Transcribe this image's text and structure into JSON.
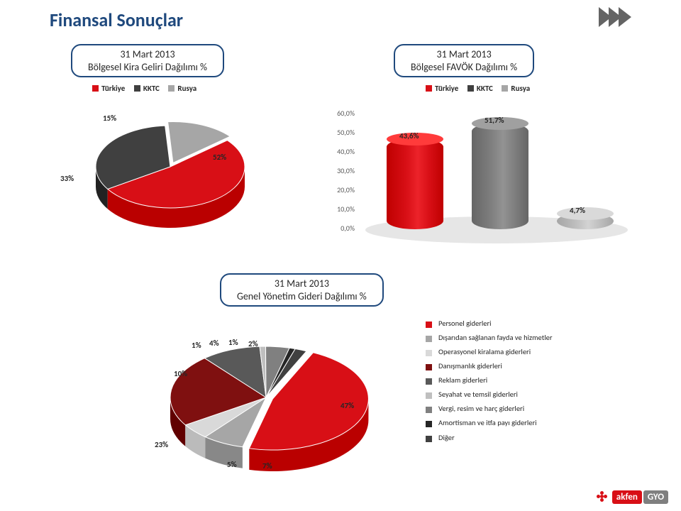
{
  "page_title": "Finansal Sonuçlar",
  "title_color": "#1f497d",
  "chevron_color": "#646464",
  "panel_border": "#1f497d",
  "pie1": {
    "title_line1": "31 Mart 2013",
    "title_line2": "Bölgesel Kira Geliri Dağılımı %",
    "legend": [
      {
        "label": "Türkiye",
        "color": "#d80f16"
      },
      {
        "label": "KKTC",
        "color": "#404040"
      },
      {
        "label": "Rusya",
        "color": "#a6a6a6"
      }
    ],
    "slices": [
      {
        "label": "52%",
        "value": 52,
        "color": "#d80f16"
      },
      {
        "label": "33%",
        "value": 33,
        "color": "#404040"
      },
      {
        "label": "15%",
        "value": 15,
        "color": "#a6a6a6"
      }
    ]
  },
  "bar": {
    "title_line1": "31 Mart 2013",
    "title_line2": "Bölgesel FAVÖK Dağılımı %",
    "legend": [
      {
        "label": "Türkiye",
        "color": "#d80f16"
      },
      {
        "label": "KKTC",
        "color": "#404040"
      },
      {
        "label": "Rusya",
        "color": "#a6a6a6"
      }
    ],
    "y_ticks": [
      "0,0%",
      "10,0%",
      "20,0%",
      "30,0%",
      "40,0%",
      "50,0%",
      "60,0%"
    ],
    "y_max": 60,
    "bars": [
      {
        "label": "43,6%",
        "value": 43.6,
        "color": "#d80f16",
        "top_color": "#ff3b3b"
      },
      {
        "label": "51,7%",
        "value": 51.7,
        "color": "#7f7f7f",
        "top_color": "#a0a0a0"
      },
      {
        "label": "4,7%",
        "value": 4.7,
        "color": "#bfbfbf",
        "top_color": "#d9d9d9"
      }
    ],
    "floor_color": "#ececec",
    "axis_color": "#595959"
  },
  "pie2": {
    "title_line1": "31 Mart 2013",
    "title_line2": "Genel Yönetim Gideri Dağılımı %",
    "legend": [
      {
        "label": "Personel giderleri",
        "color": "#d80f16"
      },
      {
        "label": "Dışarıdan sağlanan fayda ve hizmetler",
        "color": "#a6a6a6"
      },
      {
        "label": "Operasyonel kiralama giderleri",
        "color": "#d9d9d9"
      },
      {
        "label": "Danışmanlık giderleri",
        "color": "#7f1010"
      },
      {
        "label": "Reklam giderleri",
        "color": "#595959"
      },
      {
        "label": "Seyahat ve temsil giderleri",
        "color": "#bfbfbf"
      },
      {
        "label": "Vergi, resim ve harç giderleri",
        "color": "#808080"
      },
      {
        "label": "Amortisman ve itfa payı giderleri",
        "color": "#262626"
      },
      {
        "label": "Diğer",
        "color": "#404040"
      }
    ],
    "slices": [
      {
        "label": "47%",
        "value": 47,
        "color": "#d80f16"
      },
      {
        "label": "7%",
        "value": 7,
        "color": "#a6a6a6"
      },
      {
        "label": "5%",
        "value": 5,
        "color": "#d9d9d9"
      },
      {
        "label": "23%",
        "value": 23,
        "color": "#7f1010"
      },
      {
        "label": "10%",
        "value": 10,
        "color": "#595959"
      },
      {
        "label": "1%",
        "value": 1,
        "color": "#bfbfbf"
      },
      {
        "label": "4%",
        "value": 4,
        "color": "#808080"
      },
      {
        "label": "1%",
        "value": 1,
        "color": "#262626"
      },
      {
        "label": "2%",
        "value": 2,
        "color": "#404040"
      }
    ],
    "label_order": [
      "47%",
      "7%",
      "5%",
      "23%",
      "10%",
      "1%",
      "4%",
      "1%",
      "2%"
    ]
  },
  "logo": {
    "brand": "akfen",
    "sub": "GYO",
    "brand_bg": "#d80f16",
    "sub_bg": "#7f7f7f"
  }
}
